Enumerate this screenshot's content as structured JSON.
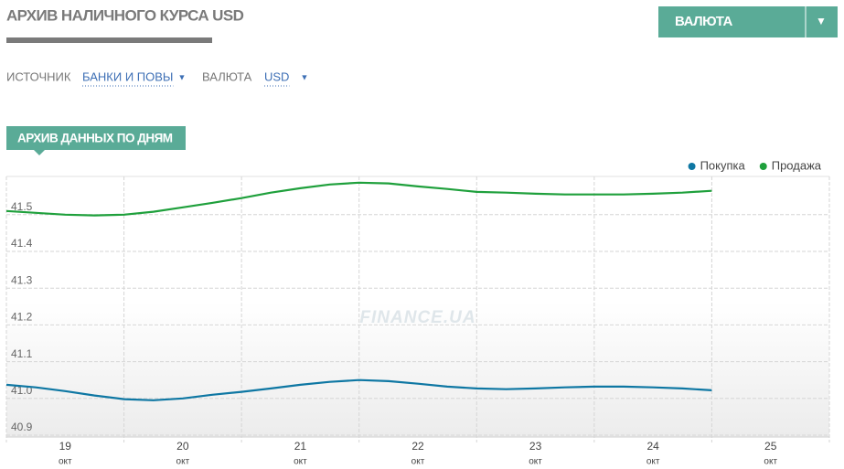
{
  "header": {
    "title": "АРХИВ НАЛИЧНОГО КУРСА USD",
    "menu_button": "ВАЛЮТА",
    "menu_arrow": "▼"
  },
  "filters": [
    {
      "label": "ИСТОЧНИК",
      "value": "БАНКИ И ПОВЫ",
      "arrow": "▼"
    },
    {
      "label": "ВАЛЮТА",
      "value": "USD",
      "arrow": "▼"
    }
  ],
  "tab": "АРХИВ ДАННЫХ ПО ДНЯМ",
  "chart_data": {
    "type": "line",
    "watermark": "FINANCE.UA",
    "x": [
      18.5,
      18.75,
      19,
      19.25,
      19.5,
      19.75,
      20,
      20.25,
      20.5,
      20.75,
      21,
      21.25,
      21.5,
      21.75,
      22,
      22.25,
      22.5,
      22.75,
      23,
      23.25,
      23.5,
      23.75,
      24,
      24.25,
      24.5
    ],
    "xlim": [
      18.5,
      25.5
    ],
    "xticks": [
      19,
      20,
      21,
      22,
      23,
      24,
      25
    ],
    "x_tick_month": "окт",
    "ylim": [
      40.895,
      41.604
    ],
    "yticks": [
      40.9,
      {
        "value": 41,
        "label": "41.0"
      },
      41.1,
      41.2,
      41.3,
      41.4,
      41.5
    ],
    "grid": true,
    "legend": "top-right",
    "series": [
      {
        "name": "Покупка",
        "color": "#0e77a3",
        "values": [
          41.037,
          41.03,
          41.02,
          41.008,
          40.998,
          40.995,
          41.0,
          41.01,
          41.018,
          41.027,
          41.037,
          41.045,
          41.05,
          41.047,
          41.04,
          41.032,
          41.027,
          41.025,
          41.027,
          41.03,
          41.032,
          41.032,
          41.03,
          41.027,
          41.022
        ]
      },
      {
        "name": "Продажа",
        "color": "#1fa03c",
        "values": [
          41.51,
          41.505,
          41.5,
          41.498,
          41.5,
          41.508,
          41.52,
          41.532,
          41.545,
          41.56,
          41.572,
          41.582,
          41.587,
          41.585,
          41.577,
          41.57,
          41.562,
          41.56,
          41.557,
          41.555,
          41.555,
          41.555,
          41.557,
          41.56,
          41.565
        ]
      }
    ]
  }
}
